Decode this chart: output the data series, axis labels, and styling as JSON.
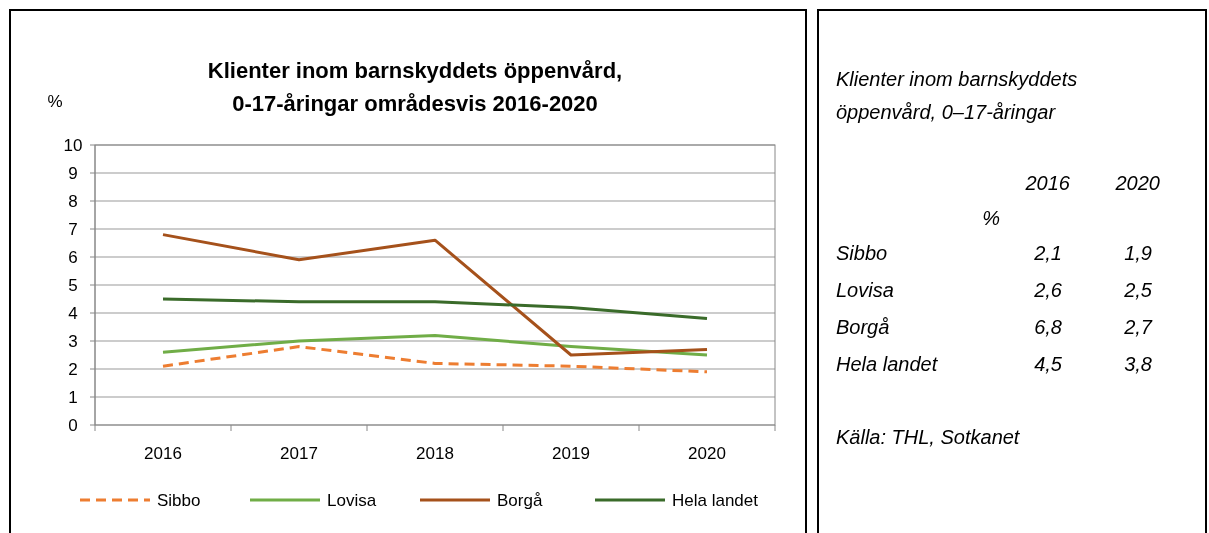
{
  "chart_data": [
    {
      "type": "line",
      "title": "Klienter inom barnskyddets öppenvård, 0-17-åringar områdesvis 2016-2020",
      "ylabel": "%",
      "categories": [
        "2016",
        "2017",
        "2018",
        "2019",
        "2020"
      ],
      "ylim": [
        0,
        10
      ],
      "yticks": [
        0,
        1,
        2,
        3,
        4,
        5,
        6,
        7,
        8,
        9,
        10
      ],
      "grid": "y",
      "legend": "bottom",
      "series": [
        {
          "name": "Sibbo",
          "color": "#ed7d31",
          "line_style": "dashed",
          "values": [
            2.1,
            2.8,
            2.2,
            2.1,
            1.9
          ]
        },
        {
          "name": "Lovisa",
          "color": "#70ad47",
          "line_style": "solid",
          "values": [
            2.6,
            3.0,
            3.2,
            2.8,
            2.5
          ]
        },
        {
          "name": "Borgå",
          "color": "#a5511b",
          "line_style": "solid",
          "values": [
            6.8,
            5.9,
            6.6,
            2.5,
            2.7
          ]
        },
        {
          "name": "Hela landet",
          "color": "#3a6b2a",
          "line_style": "solid",
          "values": [
            4.5,
            4.4,
            4.4,
            4.2,
            3.8
          ]
        }
      ]
    },
    {
      "type": "other",
      "title": "Klienter inom barnskyddets öppenvård, 0–17-åringar",
      "ylabel": "%",
      "categories": [
        "Sibbo",
        "Lovisa",
        "Borgå",
        "Hela landet"
      ],
      "data_labels": true,
      "series": [
        {
          "name": "2016",
          "values": [
            2.1,
            2.6,
            6.8,
            4.5
          ],
          "value_labels": [
            "2,1",
            "2,6",
            "6,8",
            "4,5"
          ]
        },
        {
          "name": "2020",
          "values": [
            1.9,
            2.5,
            2.7,
            3.8
          ],
          "value_labels": [
            "1,9",
            "2,5",
            "2,7",
            "3,8"
          ]
        }
      ],
      "annotations": [
        "Källa: THL, Sotkanet"
      ]
    }
  ]
}
